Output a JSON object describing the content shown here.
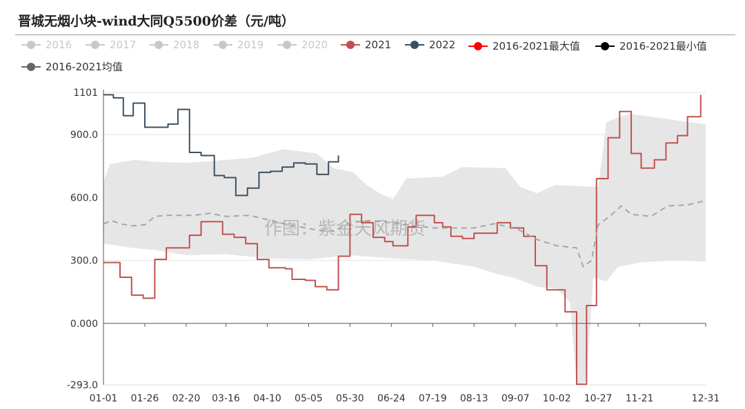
{
  "title": "晋城无烟小块-wind大同Q5500价差（元/吨）",
  "watermark": "作图：紫金天风期货",
  "chart_data": {
    "type": "line",
    "title": "晋城无烟小块-wind大同Q5500价差（元/吨）",
    "xlabel": "",
    "ylabel": "",
    "x_ticks": [
      "01-01",
      "01-26",
      "02-20",
      "03-16",
      "04-10",
      "05-05",
      "05-30",
      "06-24",
      "07-19",
      "08-13",
      "09-07",
      "10-02",
      "10-27",
      "11-21",
      "12-31"
    ],
    "y_ticks": [
      "1101",
      "900.0",
      "600.0",
      "300.0",
      "0.000",
      "-293.0"
    ],
    "ylim": [
      -293,
      1101
    ],
    "x_domain": [
      "01-01",
      "12-31"
    ],
    "legend_position": "top",
    "legend": [
      {
        "name": "2016",
        "color": "#c8c8c8",
        "visible": false
      },
      {
        "name": "2017",
        "color": "#c8c8c8",
        "visible": false
      },
      {
        "name": "2018",
        "color": "#c8c8c8",
        "visible": false
      },
      {
        "name": "2019",
        "color": "#c8c8c8",
        "visible": false
      },
      {
        "name": "2020",
        "color": "#c8c8c8",
        "visible": false
      },
      {
        "name": "2021",
        "color": "#c0504d",
        "visible": true
      },
      {
        "name": "2022",
        "color": "#3d4f5f",
        "visible": true
      },
      {
        "name": "2016-2021最大值",
        "color": "#ff0000",
        "visible": true
      },
      {
        "name": "2016-2021最小值",
        "color": "#000000",
        "visible": true
      },
      {
        "name": "2016-2021均值",
        "color": "#666666",
        "visible": true
      }
    ],
    "series": [
      {
        "name": "2021",
        "color": "#c0504d",
        "style": "step",
        "points": [
          [
            "01-01",
            290
          ],
          [
            "01-11",
            220
          ],
          [
            "01-18",
            135
          ],
          [
            "01-25",
            120
          ],
          [
            "02-01",
            305
          ],
          [
            "02-08",
            360
          ],
          [
            "02-22",
            420
          ],
          [
            "02-29",
            485
          ],
          [
            "03-14",
            425
          ],
          [
            "03-21",
            410
          ],
          [
            "03-28",
            380
          ],
          [
            "04-04",
            305
          ],
          [
            "04-11",
            265
          ],
          [
            "04-21",
            260
          ],
          [
            "04-25",
            210
          ],
          [
            "05-03",
            205
          ],
          [
            "05-09",
            175
          ],
          [
            "05-16",
            160
          ],
          [
            "05-23",
            320
          ],
          [
            "05-30",
            520
          ],
          [
            "06-06",
            480
          ],
          [
            "06-13",
            410
          ],
          [
            "06-20",
            390
          ],
          [
            "06-25",
            370
          ],
          [
            "07-04",
            460
          ],
          [
            "07-09",
            515
          ],
          [
            "07-20",
            480
          ],
          [
            "07-25",
            460
          ],
          [
            "07-30",
            415
          ],
          [
            "08-06",
            405
          ],
          [
            "08-13",
            430
          ],
          [
            "08-27",
            480
          ],
          [
            "09-04",
            455
          ],
          [
            "09-12",
            415
          ],
          [
            "09-19",
            275
          ],
          [
            "09-26",
            160
          ],
          [
            "10-07",
            55
          ],
          [
            "10-14",
            -290
          ],
          [
            "10-20",
            85
          ],
          [
            "10-26",
            690
          ],
          [
            "11-02",
            885
          ],
          [
            "11-09",
            1010
          ],
          [
            "11-16",
            810
          ],
          [
            "11-22",
            740
          ],
          [
            "11-30",
            780
          ],
          [
            "12-07",
            860
          ],
          [
            "12-14",
            895
          ],
          [
            "12-20",
            985
          ],
          [
            "12-28",
            1090
          ]
        ]
      },
      {
        "name": "2022",
        "color": "#3d4f5f",
        "style": "step",
        "points": [
          [
            "01-01",
            1090
          ],
          [
            "01-07",
            1075
          ],
          [
            "01-13",
            990
          ],
          [
            "01-19",
            1050
          ],
          [
            "01-26",
            935
          ],
          [
            "02-09",
            950
          ],
          [
            "02-15",
            1020
          ],
          [
            "02-22",
            815
          ],
          [
            "03-01",
            800
          ],
          [
            "03-09",
            705
          ],
          [
            "03-15",
            695
          ],
          [
            "03-22",
            610
          ],
          [
            "03-29",
            645
          ],
          [
            "04-05",
            720
          ],
          [
            "04-12",
            725
          ],
          [
            "04-19",
            745
          ],
          [
            "04-26",
            765
          ],
          [
            "05-03",
            760
          ],
          [
            "05-10",
            710
          ],
          [
            "05-17",
            770
          ],
          [
            "05-23",
            800
          ]
        ]
      },
      {
        "name": "2016-2021均值",
        "color": "#a6a6a6",
        "style": "dashed",
        "points": [
          [
            "01-01",
            475
          ],
          [
            "01-06",
            490
          ],
          [
            "01-11",
            475
          ],
          [
            "01-18",
            465
          ],
          [
            "01-26",
            470
          ],
          [
            "02-01",
            510
          ],
          [
            "02-08",
            515
          ],
          [
            "02-25",
            515
          ],
          [
            "03-06",
            525
          ],
          [
            "03-16",
            510
          ],
          [
            "03-30",
            515
          ],
          [
            "04-10",
            495
          ],
          [
            "04-20",
            475
          ],
          [
            "04-30",
            460
          ],
          [
            "05-10",
            445
          ],
          [
            "05-20",
            440
          ],
          [
            "05-30",
            480
          ],
          [
            "06-10",
            490
          ],
          [
            "06-24",
            480
          ],
          [
            "07-04",
            470
          ],
          [
            "07-19",
            455
          ],
          [
            "08-13",
            455
          ],
          [
            "08-25",
            475
          ],
          [
            "09-07",
            455
          ],
          [
            "09-20",
            400
          ],
          [
            "10-02",
            370
          ],
          [
            "10-14",
            360
          ],
          [
            "10-18",
            270
          ],
          [
            "10-23",
            300
          ],
          [
            "10-27",
            470
          ],
          [
            "11-03",
            510
          ],
          [
            "11-10",
            560
          ],
          [
            "11-16",
            520
          ],
          [
            "11-28",
            510
          ],
          [
            "12-08",
            560
          ],
          [
            "12-20",
            565
          ],
          [
            "12-31",
            585
          ]
        ]
      }
    ],
    "band": {
      "name": "2016-2021最大值/最小值区间",
      "color": "#e6e6e6",
      "upper": [
        [
          "01-01",
          675
        ],
        [
          "01-05",
          760
        ],
        [
          "01-20",
          780
        ],
        [
          "02-01",
          770
        ],
        [
          "02-20",
          765
        ],
        [
          "03-10",
          775
        ],
        [
          "04-01",
          790
        ],
        [
          "04-20",
          830
        ],
        [
          "05-10",
          810
        ],
        [
          "05-20",
          740
        ],
        [
          "06-01",
          720
        ],
        [
          "06-09",
          660
        ],
        [
          "06-16",
          625
        ],
        [
          "06-25",
          590
        ],
        [
          "07-03",
          690
        ],
        [
          "07-25",
          700
        ],
        [
          "08-06",
          745
        ],
        [
          "09-01",
          740
        ],
        [
          "09-10",
          650
        ],
        [
          "09-20",
          620
        ],
        [
          "10-01",
          660
        ],
        [
          "10-27",
          650
        ],
        [
          "11-01",
          960
        ],
        [
          "11-15",
          1000
        ],
        [
          "12-20",
          960
        ],
        [
          "12-31",
          950
        ]
      ],
      "lower": [
        [
          "01-01",
          380
        ],
        [
          "01-18",
          360
        ],
        [
          "02-01",
          350
        ],
        [
          "02-20",
          325
        ],
        [
          "03-16",
          330
        ],
        [
          "04-10",
          310
        ],
        [
          "05-05",
          305
        ],
        [
          "05-30",
          325
        ],
        [
          "06-24",
          310
        ],
        [
          "07-19",
          300
        ],
        [
          "08-13",
          270
        ],
        [
          "08-25",
          240
        ],
        [
          "09-07",
          215
        ],
        [
          "09-20",
          175
        ],
        [
          "10-02",
          165
        ],
        [
          "10-10",
          100
        ],
        [
          "10-14",
          -290
        ],
        [
          "10-20",
          -280
        ],
        [
          "10-24",
          220
        ],
        [
          "11-01",
          200
        ],
        [
          "11-08",
          270
        ],
        [
          "11-21",
          290
        ],
        [
          "12-10",
          300
        ],
        [
          "12-31",
          295
        ]
      ]
    }
  }
}
